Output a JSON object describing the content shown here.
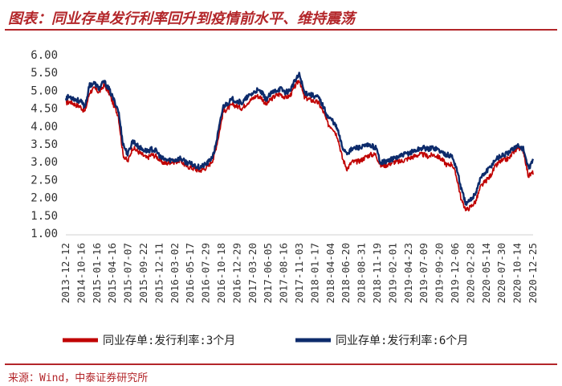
{
  "header": {
    "title": "图表：同业存单发行利率回升到疫情前水平、维持震荡"
  },
  "footer": {
    "source": "来源：Wind，中泰证券研究所"
  },
  "colors": {
    "accent": "#b3262a",
    "series_3m": "#c00000",
    "series_6m": "#0d2b6b"
  },
  "chart_data": {
    "type": "line",
    "title": "",
    "xlabel": "",
    "ylabel": "",
    "ylim": [
      1.0,
      6.0
    ],
    "yticks": [
      "6.00",
      "5.50",
      "5.00",
      "4.50",
      "4.00",
      "3.50",
      "3.00",
      "2.50",
      "2.00",
      "1.50",
      "1.00"
    ],
    "xticks": [
      "2013-12-12",
      "2014-10-16",
      "2015-01-16",
      "2015-04-16",
      "2015-07-07",
      "2015-09-22",
      "2015-12-11",
      "2016-03-02",
      "2016-05-17",
      "2016-07-29",
      "2016-10-18",
      "2016-12-29",
      "2017-03-20",
      "2017-06-05",
      "2017-08-16",
      "2017-11-03",
      "2018-01-17",
      "2018-04-04",
      "2018-06-20",
      "2018-08-31",
      "2018-11-19",
      "2019-02-01",
      "2019-04-23",
      "2019-07-09",
      "2019-09-20",
      "2019-12-06",
      "2020-02-28",
      "2020-05-14",
      "2020-07-30",
      "2020-10-14",
      "2020-12-25"
    ],
    "legend": "bottom",
    "series": [
      {
        "name": "同业存单:发行利率:3个月",
        "color": "#c00000",
        "values": [
          4.65,
          4.68,
          4.6,
          4.55,
          4.4,
          4.95,
          5.05,
          4.95,
          5.15,
          4.95,
          4.6,
          4.3,
          3.2,
          3.0,
          3.4,
          3.3,
          3.2,
          3.1,
          3.2,
          3.15,
          3.0,
          2.95,
          3.0,
          3.0,
          3.05,
          2.9,
          2.85,
          2.8,
          2.75,
          2.8,
          2.9,
          3.1,
          3.7,
          4.4,
          4.5,
          4.6,
          4.55,
          4.5,
          4.65,
          4.75,
          4.85,
          4.8,
          4.6,
          4.75,
          4.85,
          4.9,
          4.8,
          4.85,
          5.1,
          5.3,
          4.8,
          4.75,
          4.7,
          4.65,
          4.4,
          4.05,
          3.95,
          3.7,
          3.1,
          2.8,
          3.0,
          3.0,
          3.05,
          3.15,
          3.2,
          3.2,
          2.9,
          2.9,
          2.95,
          3.0,
          3.0,
          3.05,
          3.1,
          3.15,
          3.2,
          3.2,
          3.15,
          3.2,
          3.15,
          3.05,
          2.9,
          2.95,
          2.55,
          1.9,
          1.65,
          1.75,
          1.9,
          2.3,
          2.45,
          2.6,
          2.85,
          3.0,
          3.05,
          3.1,
          3.3,
          3.4,
          3.3,
          2.6,
          2.7
        ]
      },
      {
        "name": "同业存单:发行利率:6个月",
        "color": "#0d2b6b",
        "values": [
          4.8,
          4.82,
          4.75,
          4.7,
          4.55,
          5.15,
          5.2,
          5.05,
          5.25,
          5.05,
          4.75,
          4.45,
          3.5,
          3.2,
          3.6,
          3.45,
          3.35,
          3.3,
          3.35,
          3.3,
          3.1,
          3.05,
          3.05,
          3.05,
          3.1,
          3.0,
          2.95,
          2.9,
          2.85,
          2.9,
          3.0,
          3.2,
          3.85,
          4.55,
          4.65,
          4.75,
          4.7,
          4.65,
          4.8,
          4.9,
          5.0,
          4.95,
          4.75,
          4.9,
          5.0,
          5.05,
          4.95,
          5.0,
          5.25,
          5.45,
          4.95,
          4.9,
          4.85,
          4.8,
          4.55,
          4.25,
          4.15,
          3.9,
          3.4,
          3.25,
          3.35,
          3.4,
          3.4,
          3.45,
          3.45,
          3.4,
          3.0,
          3.0,
          3.05,
          3.1,
          3.15,
          3.2,
          3.25,
          3.3,
          3.35,
          3.4,
          3.35,
          3.4,
          3.35,
          3.25,
          3.2,
          3.15,
          2.8,
          2.2,
          1.8,
          1.95,
          2.15,
          2.55,
          2.7,
          2.85,
          3.05,
          3.15,
          3.2,
          3.25,
          3.4,
          3.45,
          3.35,
          2.8,
          3.05
        ]
      }
    ]
  }
}
